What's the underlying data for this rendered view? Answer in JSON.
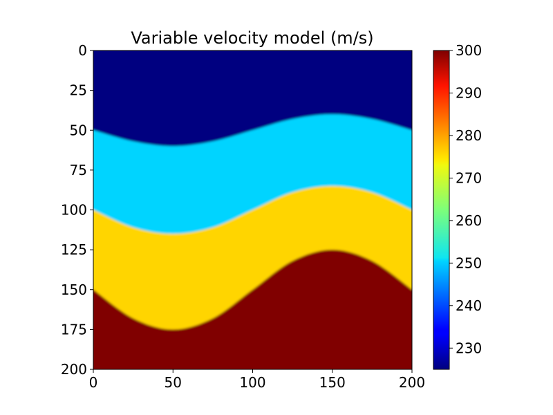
{
  "chart_data": {
    "type": "heatmap",
    "title": "Variable velocity model (m/s)",
    "xlabel": "",
    "ylabel": "",
    "xlim": [
      0,
      200
    ],
    "ylim": [
      200,
      0
    ],
    "x_ticks": [
      0,
      50,
      100,
      150,
      200
    ],
    "y_ticks": [
      0,
      25,
      50,
      75,
      100,
      125,
      150,
      175,
      200
    ],
    "colormap": "jet",
    "colorbar": {
      "min": 225,
      "max": 300,
      "ticks": [
        230,
        240,
        250,
        260,
        270,
        280,
        290,
        300
      ]
    },
    "layers": [
      {
        "velocity": 225
      },
      {
        "velocity": 250
      },
      {
        "velocity": 275
      },
      {
        "velocity": 300
      }
    ],
    "interfaces": [
      {
        "x": [
          0,
          25,
          50,
          75,
          100,
          125,
          150,
          175,
          200
        ],
        "depth": [
          50,
          57,
          60,
          57,
          50,
          43,
          40,
          43,
          50
        ]
      },
      {
        "x": [
          0,
          25,
          50,
          75,
          100,
          125,
          150,
          175,
          200
        ],
        "depth": [
          100,
          111,
          115,
          111,
          100,
          89,
          85,
          89,
          100
        ]
      },
      {
        "x": [
          0,
          25,
          50,
          75,
          100,
          125,
          150,
          175,
          200
        ],
        "depth": [
          150,
          168,
          175,
          168,
          150,
          132,
          125,
          132,
          150
        ]
      }
    ]
  }
}
